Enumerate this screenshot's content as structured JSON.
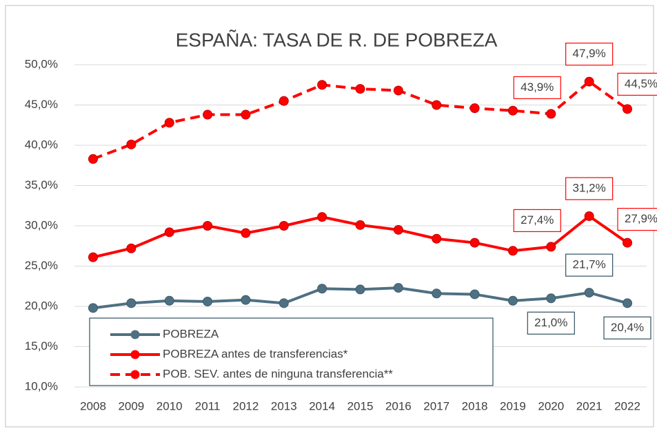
{
  "chart_data": {
    "type": "line",
    "title": "ESPAÑA: TASA DE R. DE POBREZA",
    "categories": [
      "2008",
      "2009",
      "2010",
      "2011",
      "2012",
      "2013",
      "2014",
      "2015",
      "2016",
      "2017",
      "2018",
      "2019",
      "2020",
      "2021",
      "2022"
    ],
    "series": [
      {
        "name": "POBREZA",
        "color": "#4e7082",
        "line_style": "solid",
        "values": [
          19.8,
          20.4,
          20.7,
          20.6,
          20.8,
          20.4,
          22.2,
          22.1,
          22.3,
          21.6,
          21.5,
          20.7,
          21.0,
          21.7,
          20.4
        ],
        "value_labels": [
          null,
          null,
          null,
          null,
          null,
          null,
          null,
          null,
          null,
          null,
          null,
          null,
          "21,0%",
          "21,7%",
          "20,4%"
        ]
      },
      {
        "name": "POBREZA antes de transferencias*",
        "color": "#ff0000",
        "line_style": "solid",
        "values": [
          26.1,
          27.2,
          29.2,
          30.0,
          29.1,
          30.0,
          31.1,
          30.1,
          29.5,
          28.4,
          27.9,
          26.9,
          27.4,
          31.2,
          27.9
        ],
        "value_labels": [
          null,
          null,
          null,
          null,
          null,
          null,
          null,
          null,
          null,
          null,
          null,
          null,
          "27,4%",
          "31,2%",
          "27,9%"
        ]
      },
      {
        "name": "POB. SEV. antes de ninguna transferencia**",
        "color": "#ff0000",
        "line_style": "dashed",
        "values": [
          38.3,
          40.1,
          42.8,
          43.8,
          43.8,
          45.5,
          47.5,
          47.0,
          46.8,
          45.0,
          44.6,
          44.3,
          43.9,
          47.9,
          44.5
        ],
        "value_labels": [
          null,
          null,
          null,
          null,
          null,
          null,
          null,
          null,
          null,
          null,
          null,
          null,
          "43,9%",
          "47,9%",
          "44,5%"
        ]
      }
    ],
    "ylim": [
      10,
      50
    ],
    "yticks": [
      {
        "value": 10,
        "label": "10,0%"
      },
      {
        "value": 15,
        "label": "15,0%"
      },
      {
        "value": 20,
        "label": "20,0%"
      },
      {
        "value": 25,
        "label": "25,0%"
      },
      {
        "value": 30,
        "label": "30,0%"
      },
      {
        "value": 35,
        "label": "35,0%"
      },
      {
        "value": 40,
        "label": "40,0%"
      },
      {
        "value": 45,
        "label": "45,0%"
      },
      {
        "value": 50,
        "label": "50,0%"
      }
    ],
    "grid": true,
    "legend": "lower left"
  }
}
